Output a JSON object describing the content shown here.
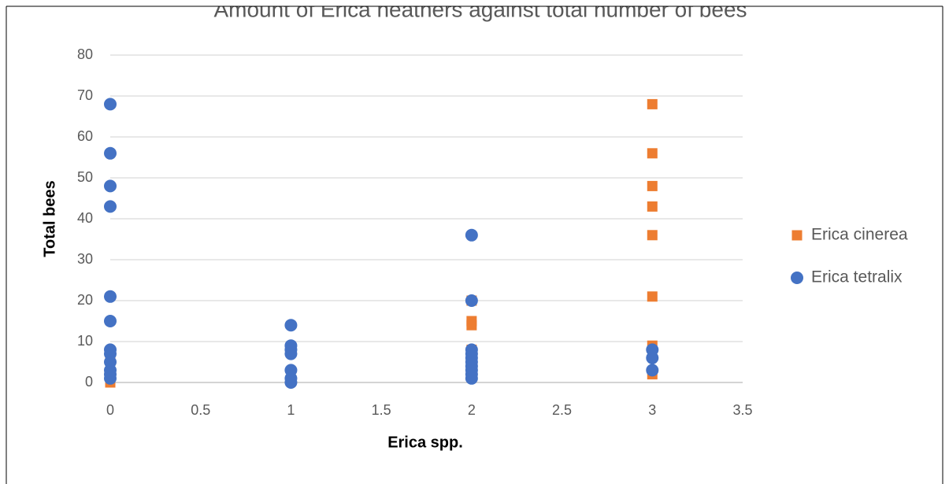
{
  "chart_data": {
    "type": "scatter",
    "title": "Amount of Erica heathers against total number of bees",
    "xlabel": "Erica spp.",
    "ylabel": "Total bees",
    "xlim": [
      0,
      3.5
    ],
    "xticks": [
      0,
      0.5,
      1,
      1.5,
      2,
      2.5,
      3,
      3.5
    ],
    "ylim": [
      0,
      80
    ],
    "yticks": [
      0,
      10,
      20,
      30,
      40,
      50,
      60,
      70,
      80
    ],
    "grid": true,
    "legend": "right",
    "series": [
      {
        "name": "Erica cinerea",
        "color": "#ed7d31",
        "marker": "square",
        "x": [
          0,
          0,
          2,
          2,
          2,
          2,
          3,
          3,
          3,
          3,
          3,
          3,
          3,
          3
        ],
        "values": [
          0,
          7,
          20,
          15,
          14,
          8,
          68,
          56,
          48,
          43,
          36,
          21,
          9,
          2
        ]
      },
      {
        "name": "Erica tetralix",
        "color": "#4472c4",
        "marker": "circle",
        "x": [
          0,
          0,
          0,
          0,
          0,
          0,
          0,
          0,
          0,
          0,
          0,
          0,
          1,
          1,
          1,
          1,
          1,
          1,
          1,
          2,
          2,
          2,
          2,
          2,
          2,
          2,
          2,
          2,
          2,
          3,
          3,
          3
        ],
        "values": [
          68,
          56,
          48,
          43,
          21,
          15,
          8,
          7,
          5,
          3,
          2,
          1,
          14,
          9,
          8,
          7,
          3,
          1,
          0,
          36,
          20,
          8,
          7,
          6,
          5,
          4,
          3,
          2,
          1,
          8,
          6,
          3
        ]
      }
    ]
  }
}
